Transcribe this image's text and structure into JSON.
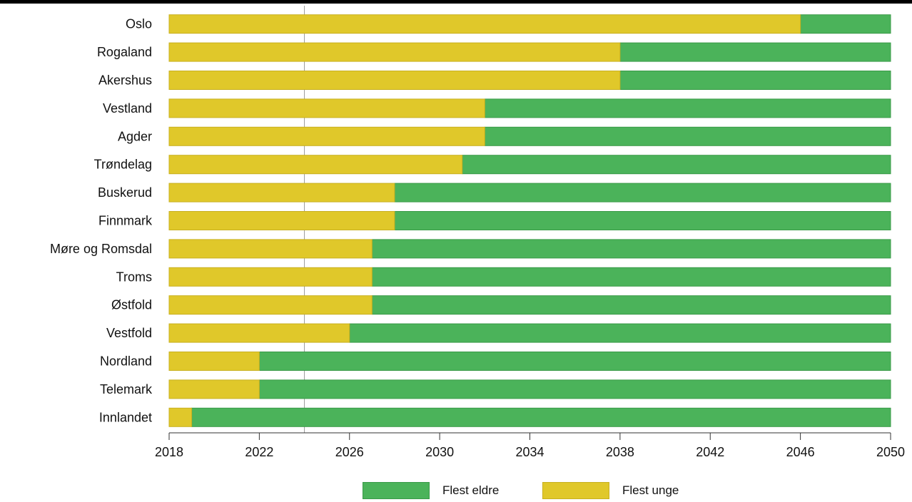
{
  "chart_data": {
    "type": "bar",
    "orientation": "horizontal",
    "stacked": true,
    "categories": [
      "Oslo",
      "Rogaland",
      "Akershus",
      "Vestland",
      "Agder",
      "Trøndelag",
      "Buskerud",
      "Finnmark",
      "Møre og Romsdal",
      "Troms",
      "Østfold",
      "Vestfold",
      "Nordland",
      "Telemark",
      "Innlandet"
    ],
    "series": [
      {
        "name": "Flest unge",
        "color": "#e0c82a",
        "start": 2018,
        "end": [
          2046,
          2038,
          2038,
          2032,
          2032,
          2031,
          2028,
          2028,
          2027,
          2027,
          2027,
          2026,
          2022,
          2022,
          2019
        ]
      },
      {
        "name": "Flest eldre",
        "color": "#4bb35a",
        "end": 2050
      }
    ],
    "x_ticks": [
      "2018",
      "2022",
      "2026",
      "2030",
      "2034",
      "2038",
      "2042",
      "2046",
      "2050"
    ],
    "xlim": [
      2018,
      2050
    ],
    "reference_line": 2024,
    "grid": false,
    "legend": "bottom-center",
    "title": "",
    "xlabel": "",
    "ylabel": ""
  },
  "legend": {
    "items": [
      {
        "label": "Flest eldre",
        "color": "#4bb35a",
        "border": "#3a9a48"
      },
      {
        "label": "Flest unge",
        "color": "#e0c82a",
        "border": "#c8b020"
      }
    ]
  }
}
